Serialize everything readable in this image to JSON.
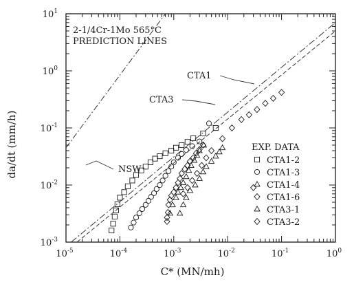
{
  "chart_data": {
    "type": "scatter",
    "title": "",
    "annotations": [
      "2-1/4Cr-1Mo 565°C",
      "PREDICTION LINES"
    ],
    "xlabel": "C* (MN/mh)",
    "ylabel": "da/dt (mm/h)",
    "x_scale": "log",
    "y_scale": "log",
    "xlim": [
      1e-05,
      1
    ],
    "ylim": [
      0.001,
      10
    ],
    "x_ticks": [
      {
        "value": 1e-05,
        "base": "10",
        "exp": "-5"
      },
      {
        "value": 0.0001,
        "base": "10",
        "exp": "-4"
      },
      {
        "value": 0.001,
        "base": "10",
        "exp": "-3"
      },
      {
        "value": 0.01,
        "base": "10",
        "exp": "-2"
      },
      {
        "value": 0.1,
        "base": "10",
        "exp": "-1"
      },
      {
        "value": 1,
        "base": "10",
        "exp": "0"
      }
    ],
    "y_ticks": [
      {
        "value": 0.001,
        "base": "10",
        "exp": "-3"
      },
      {
        "value": 0.01,
        "base": "10",
        "exp": "-2"
      },
      {
        "value": 0.1,
        "base": "10",
        "exp": "-1"
      },
      {
        "value": 1,
        "base": "10",
        "exp": "0"
      },
      {
        "value": 10,
        "base": "10",
        "exp": "1"
      }
    ],
    "grid": false,
    "legend_title": "EXP. DATA",
    "legend_position": "right",
    "lines": [
      {
        "name": "NSW",
        "points": [
          [
            1e-05,
            0.045
          ],
          [
            0.0007,
            10
          ]
        ]
      },
      {
        "name": "CTA1",
        "points": [
          [
            1.25e-05,
            0.001
          ],
          [
            1,
            7
          ]
        ]
      },
      {
        "name": "CTA3",
        "points": [
          [
            1.6e-05,
            0.001
          ],
          [
            1,
            5
          ]
        ]
      }
    ],
    "series": [
      {
        "name": "CTA1-2",
        "marker": "square",
        "points": [
          [
            7e-05,
            0.0016
          ],
          [
            7.5e-05,
            0.0021
          ],
          [
            8e-05,
            0.0028
          ],
          [
            8.5e-05,
            0.0036
          ],
          [
            9e-05,
            0.0046
          ],
          [
            0.0001,
            0.006
          ],
          [
            0.00012,
            0.0075
          ],
          [
            0.00014,
            0.0095
          ],
          [
            0.00017,
            0.012
          ],
          [
            0.0002,
            0.015
          ],
          [
            0.00025,
            0.018
          ],
          [
            0.0003,
            0.021
          ],
          [
            0.00037,
            0.025
          ],
          [
            0.00045,
            0.029
          ],
          [
            0.00055,
            0.032
          ],
          [
            0.0007,
            0.036
          ],
          [
            0.0009,
            0.04
          ],
          [
            0.0011,
            0.045
          ],
          [
            0.0014,
            0.05
          ],
          [
            0.0018,
            0.057
          ],
          [
            0.0023,
            0.066
          ],
          [
            0.0035,
            0.08
          ],
          [
            0.006,
            0.1
          ]
        ]
      },
      {
        "name": "CTA1-3",
        "marker": "circle",
        "points": [
          [
            0.00016,
            0.0018
          ],
          [
            0.00018,
            0.0022
          ],
          [
            0.0002,
            0.0027
          ],
          [
            0.00023,
            0.0032
          ],
          [
            0.00026,
            0.0038
          ],
          [
            0.0003,
            0.0045
          ],
          [
            0.00034,
            0.0053
          ],
          [
            0.00038,
            0.0062
          ],
          [
            0.00043,
            0.0072
          ],
          [
            0.00048,
            0.0085
          ],
          [
            0.00055,
            0.01
          ],
          [
            0.00062,
            0.012
          ],
          [
            0.0007,
            0.0145
          ],
          [
            0.0008,
            0.0175
          ],
          [
            0.0009,
            0.021
          ],
          [
            0.001,
            0.025
          ],
          [
            0.0012,
            0.03
          ],
          [
            0.0014,
            0.035
          ],
          [
            0.0017,
            0.041
          ],
          [
            0.0022,
            0.048
          ],
          [
            0.003,
            0.058
          ],
          [
            0.0045,
            0.12
          ]
        ]
      },
      {
        "name": "CTA1-4",
        "marker": "triangle",
        "points": [
          [
            0.00085,
            0.0032
          ],
          [
            0.00095,
            0.0045
          ],
          [
            0.0011,
            0.006
          ],
          [
            0.0012,
            0.0075
          ],
          [
            0.00135,
            0.009
          ],
          [
            0.0015,
            0.011
          ],
          [
            0.0017,
            0.014
          ],
          [
            0.0019,
            0.018
          ],
          [
            0.0021,
            0.022
          ],
          [
            0.0024,
            0.027
          ],
          [
            0.0027,
            0.033
          ],
          [
            0.003,
            0.04
          ],
          [
            0.0036,
            0.05
          ]
        ]
      },
      {
        "name": "CTA1-6",
        "marker": "diamond",
        "points": [
          [
            0.00075,
            0.0023
          ],
          [
            0.00075,
            0.0027
          ],
          [
            0.00078,
            0.0033
          ],
          [
            0.0008,
            0.0045
          ],
          [
            0.00085,
            0.0055
          ],
          [
            0.0009,
            0.0065
          ],
          [
            0.001,
            0.0075
          ],
          [
            0.0011,
            0.009
          ],
          [
            0.0012,
            0.011
          ],
          [
            0.0013,
            0.013
          ],
          [
            0.0014,
            0.016
          ],
          [
            0.0016,
            0.019
          ],
          [
            0.0018,
            0.022
          ],
          [
            0.002,
            0.026
          ],
          [
            0.0023,
            0.03
          ],
          [
            0.0026,
            0.036
          ],
          [
            0.003,
            0.042
          ],
          [
            0.0035,
            0.05
          ]
        ]
      },
      {
        "name": "CTA3-1",
        "marker": "triangle",
        "points": [
          [
            0.0013,
            0.0032
          ],
          [
            0.0015,
            0.0045
          ],
          [
            0.0017,
            0.006
          ],
          [
            0.002,
            0.008
          ],
          [
            0.0025,
            0.01
          ],
          [
            0.003,
            0.013
          ],
          [
            0.0035,
            0.017
          ],
          [
            0.004,
            0.021
          ],
          [
            0.005,
            0.026
          ],
          [
            0.006,
            0.032
          ],
          [
            0.007,
            0.038
          ],
          [
            0.008,
            0.045
          ]
        ]
      },
      {
        "name": "CTA3-2",
        "marker": "diamond",
        "points": [
          [
            0.0015,
            0.007
          ],
          [
            0.0018,
            0.009
          ],
          [
            0.0022,
            0.012
          ],
          [
            0.0027,
            0.016
          ],
          [
            0.0033,
            0.022
          ],
          [
            0.004,
            0.03
          ],
          [
            0.005,
            0.04
          ],
          [
            0.008,
            0.065
          ],
          [
            0.012,
            0.1
          ],
          [
            0.018,
            0.14
          ],
          [
            0.025,
            0.17
          ],
          [
            0.035,
            0.21
          ],
          [
            0.05,
            0.27
          ],
          [
            0.07,
            0.33
          ],
          [
            0.1,
            0.42
          ],
          [
            0.03,
            0.009
          ]
        ]
      }
    ]
  }
}
